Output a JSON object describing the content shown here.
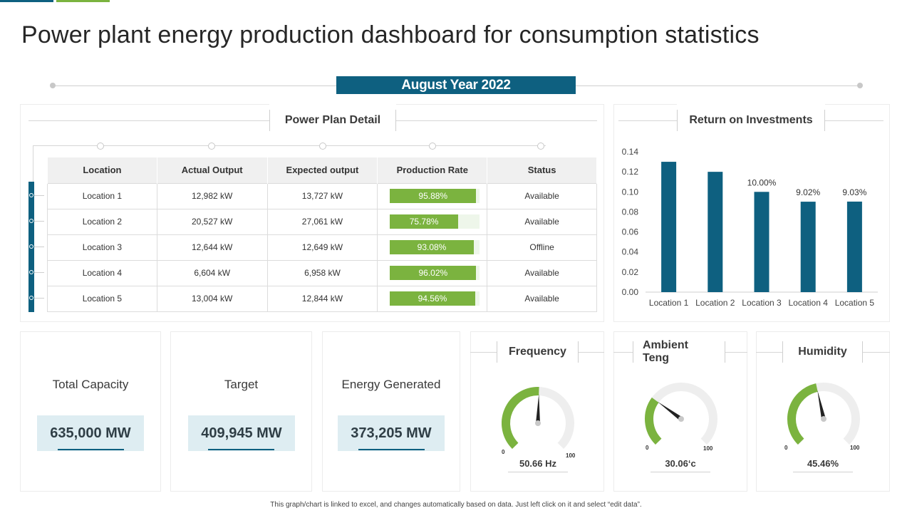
{
  "title": "Power plant energy production dashboard for consumption statistics",
  "period_label": "August Year 2022",
  "colors": {
    "primary": "#0e6080",
    "accent_green": "#7bb33f",
    "offline": "#c00000",
    "kpi_box": "#deedf2"
  },
  "power_plan": {
    "heading": "Power Plan Detail",
    "columns": [
      "Location",
      "Actual Output",
      "Expected output",
      "Production Rate",
      "Status"
    ],
    "rows": [
      {
        "location": "Location 1",
        "actual": "12,982 kW",
        "expected": "13,727 kW",
        "rate_label": "95.88%",
        "rate": 95.88,
        "status": "Available"
      },
      {
        "location": "Location 2",
        "actual": "20,527 kW",
        "expected": "27,061 kW",
        "rate_label": "75.78%",
        "rate": 75.78,
        "status": "Available"
      },
      {
        "location": "Location 3",
        "actual": "12,644 kW",
        "expected": "12,649 kW",
        "rate_label": "93.08%",
        "rate": 93.08,
        "status": "Offline"
      },
      {
        "location": "Location 4",
        "actual": "6,604 kW",
        "expected": "6,958 kW",
        "rate_label": "96.02%",
        "rate": 96.02,
        "status": "Available"
      },
      {
        "location": "Location 5",
        "actual": "13,004 kW",
        "expected": "12,844 kW",
        "rate_label": "94.56%",
        "rate": 94.56,
        "status": "Available"
      }
    ]
  },
  "roi": {
    "heading": "Return on Investments"
  },
  "chart_data": {
    "type": "bar",
    "categories": [
      "Location 1",
      "Location 2",
      "Location 3",
      "Location 4",
      "Location 5"
    ],
    "values": [
      0.13,
      0.12,
      0.1,
      0.0902,
      0.0903
    ],
    "data_labels": [
      "",
      "",
      "10.00%",
      "9.02%",
      "9.03%"
    ],
    "yticks": [
      "0.00",
      "0.02",
      "0.04",
      "0.06",
      "0.08",
      "0.10",
      "0.12",
      "0.14"
    ],
    "ylim": [
      0,
      0.14
    ],
    "color": "#0e6080",
    "grid": false
  },
  "kpis": [
    {
      "label": "Total Capacity",
      "value": "635,000 MW"
    },
    {
      "label": "Target",
      "value": "409,945 MW"
    },
    {
      "label": "Energy Generated",
      "value": "373,205 MW"
    }
  ],
  "gauges": [
    {
      "heading": "Frequency",
      "value_label": "50.66 Hz",
      "level": 50.66,
      "min": "0",
      "max": "100"
    },
    {
      "heading": "Ambient Teng",
      "value_label": "30.06‘c",
      "level": 30.06,
      "min": "0",
      "max": "100"
    },
    {
      "heading": "Humidity",
      "value_label": "45.46%",
      "level": 45.46,
      "min": "0",
      "max": "100"
    }
  ],
  "footnote": "This graph/chart is linked to excel, and changes automatically based on data. Just left click on it and select “edit data”."
}
